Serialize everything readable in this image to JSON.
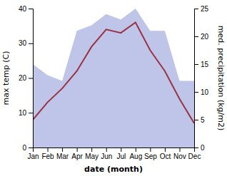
{
  "chart_data": {
    "type": "line",
    "xlabel": "date (month)",
    "ylabel": "max temp (C)",
    "y2label": "med. precipitation (kg/m2)",
    "categories": [
      "Jan",
      "Feb",
      "Mar",
      "Apr",
      "May",
      "Jun",
      "Jul",
      "Aug",
      "Sep",
      "Oct",
      "Nov",
      "Dec"
    ],
    "series": [
      {
        "type": "area",
        "axis": "y2",
        "color": "#bfc5e8",
        "values": [
          15,
          13,
          12,
          21,
          22,
          24,
          23,
          25,
          21,
          21,
          12,
          12
        ]
      },
      {
        "type": "line",
        "color": "#993344",
        "values": [
          8,
          13,
          17,
          22,
          29,
          34,
          33,
          36,
          28,
          22,
          14,
          7
        ]
      }
    ],
    "ylim": [
      0,
      40
    ],
    "yticks": [
      0,
      10,
      20,
      30,
      40
    ],
    "y2lim": [
      0,
      25
    ],
    "y2ticks": [
      0,
      5,
      10,
      15,
      20,
      25
    ],
    "grid": false
  }
}
